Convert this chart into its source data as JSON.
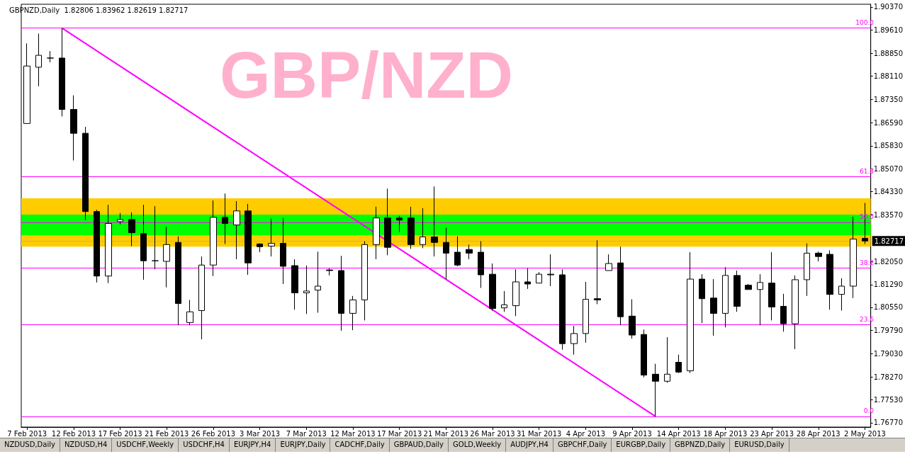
{
  "chart_data": {
    "type": "candlestick",
    "title": "GBP/NZD",
    "subtitle": "GBPNZD,Daily  1.82806 1.83962 1.82619 1.82717",
    "categories": [
      "7 Feb 2013",
      null,
      null,
      null,
      "12 Feb 2013",
      null,
      null,
      null,
      "17 Feb 2013",
      null,
      null,
      null,
      "21 Feb 2013",
      null,
      null,
      null,
      "26 Feb 2013",
      null,
      null,
      null,
      "3 Mar 2013",
      null,
      null,
      null,
      "7 Mar 2013",
      null,
      null,
      null,
      "12 Mar 2013",
      null,
      null,
      null,
      "17 Mar 2013",
      null,
      null,
      null,
      "21 Mar 2013",
      null,
      null,
      null,
      "26 Mar 2013",
      null,
      null,
      null,
      "31 Mar 2013",
      null,
      null,
      null,
      "4 Apr 2013",
      null,
      null,
      null,
      "9 Apr 2013",
      null,
      null,
      null,
      "14 Apr 2013",
      null,
      null,
      null,
      "18 Apr 2013",
      null,
      null,
      null,
      "23 Apr 2013",
      null,
      null,
      null,
      "28 Apr 2013",
      null,
      null,
      null,
      "2 May 2013"
    ],
    "ohlc": [
      [
        1.8656,
        1.8918,
        1.8656,
        1.8844
      ],
      [
        1.884,
        1.895,
        1.8778,
        1.8879
      ],
      [
        1.887,
        1.8893,
        1.8856,
        1.887
      ],
      [
        1.887,
        1.8968,
        1.8679,
        1.8702
      ],
      [
        1.8702,
        1.8748,
        1.8535,
        1.8624
      ],
      [
        1.8624,
        1.8645,
        1.834,
        1.8368
      ],
      [
        1.8368,
        1.8374,
        1.8136,
        1.8157
      ],
      [
        1.8157,
        1.839,
        1.8134,
        1.8329
      ],
      [
        1.8335,
        1.8363,
        1.8326,
        1.8342
      ],
      [
        1.8342,
        1.8365,
        1.8255,
        1.8299
      ],
      [
        1.8296,
        1.839,
        1.8145,
        1.8207
      ],
      [
        1.8207,
        1.8386,
        1.8179,
        1.8207
      ],
      [
        1.8205,
        1.8319,
        1.812,
        1.826
      ],
      [
        1.8267,
        1.8287,
        1.7996,
        1.8067
      ],
      [
        1.8005,
        1.8079,
        1.7996,
        1.804
      ],
      [
        1.8044,
        1.8221,
        1.795,
        1.8193
      ],
      [
        1.8193,
        1.8404,
        1.8157,
        1.8349
      ],
      [
        1.8349,
        1.8427,
        1.8262,
        1.8329
      ],
      [
        1.8324,
        1.8402,
        1.8212,
        1.837
      ],
      [
        1.837,
        1.8393,
        1.8161,
        1.82
      ],
      [
        1.8262,
        1.8264,
        1.8235,
        1.8253
      ],
      [
        1.8255,
        1.8345,
        1.8221,
        1.8264
      ],
      [
        1.8264,
        1.8347,
        1.8131,
        1.8189
      ],
      [
        1.8191,
        1.8212,
        1.8047,
        1.8102
      ],
      [
        1.8102,
        1.8191,
        1.8033,
        1.8108
      ],
      [
        1.8111,
        1.8237,
        1.8037,
        1.8124
      ],
      [
        1.8177,
        1.8182,
        1.8159,
        1.8175
      ],
      [
        1.8175,
        1.8223,
        1.7978,
        1.8035
      ],
      [
        1.8035,
        1.8092,
        1.798,
        1.8079
      ],
      [
        1.8079,
        1.8271,
        1.8012,
        1.826
      ],
      [
        1.826,
        1.8384,
        1.8212,
        1.8347
      ],
      [
        1.8347,
        1.8443,
        1.8225,
        1.8251
      ],
      [
        1.8347,
        1.8354,
        1.8301,
        1.834
      ],
      [
        1.8347,
        1.8384,
        1.8246,
        1.826
      ],
      [
        1.826,
        1.8379,
        1.8248,
        1.8285
      ],
      [
        1.8285,
        1.845,
        1.8221,
        1.8267
      ],
      [
        1.8267,
        1.8315,
        1.8147,
        1.8232
      ],
      [
        1.8235,
        1.8287,
        1.8189,
        1.8193
      ],
      [
        1.8244,
        1.826,
        1.8212,
        1.8232
      ],
      [
        1.8235,
        1.8271,
        1.8118,
        1.8161
      ],
      [
        1.8163,
        1.8198,
        1.8044,
        1.8051
      ],
      [
        1.8053,
        1.8108,
        1.804,
        1.8063
      ],
      [
        1.806,
        1.8179,
        1.8026,
        1.8138
      ],
      [
        1.8138,
        1.8182,
        1.8115,
        1.8131
      ],
      [
        1.8134,
        1.817,
        1.8134,
        1.8163
      ],
      [
        1.8163,
        1.8228,
        1.8124,
        1.8161
      ],
      [
        1.8161,
        1.8179,
        1.7916,
        1.7936
      ],
      [
        1.7936,
        1.7994,
        1.79,
        1.7969
      ],
      [
        1.7969,
        1.8138,
        1.7939,
        1.8081
      ],
      [
        1.8083,
        1.8274,
        1.8065,
        1.8079
      ],
      [
        1.8175,
        1.8228,
        1.8175,
        1.8198
      ],
      [
        1.82,
        1.8253,
        1.7996,
        1.8024
      ],
      [
        1.8026,
        1.8081,
        1.7952,
        1.7964
      ],
      [
        1.7966,
        1.7982,
        1.7826,
        1.7833
      ],
      [
        1.7836,
        1.787,
        1.7698,
        1.7813
      ],
      [
        1.7813,
        1.7957,
        1.7808,
        1.7836
      ],
      [
        1.7875,
        1.79,
        1.784,
        1.7843
      ],
      [
        1.7847,
        1.8235,
        1.784,
        1.8147
      ],
      [
        1.8147,
        1.8163,
        1.8003,
        1.8083
      ],
      [
        1.8085,
        1.8147,
        1.7962,
        1.8035
      ],
      [
        1.8035,
        1.8186,
        1.7989,
        1.8159
      ],
      [
        1.8159,
        1.8175,
        1.804,
        1.8058
      ],
      [
        1.8127,
        1.8131,
        1.8113,
        1.8113
      ],
      [
        1.8113,
        1.8163,
        1.7996,
        1.8136
      ],
      [
        1.8134,
        1.8235,
        1.8012,
        1.8056
      ],
      [
        1.8058,
        1.8099,
        1.7975,
        1.8001
      ],
      [
        1.8001,
        1.8159,
        1.7918,
        1.8145
      ],
      [
        1.8145,
        1.8264,
        1.8092,
        1.8232
      ],
      [
        1.8232,
        1.8237,
        1.8205,
        1.8221
      ],
      [
        1.8228,
        1.8241,
        1.8047,
        1.8097
      ],
      [
        1.8097,
        1.815,
        1.8044,
        1.8124
      ],
      [
        1.8124,
        1.8351,
        1.8085,
        1.8278
      ],
      [
        1.82806,
        1.83962,
        1.82619,
        1.82717
      ]
    ],
    "series": [
      {
        "type": "line",
        "color": "#ff00ff",
        "values": [
          null,
          null,
          null,
          1.8968,
          null,
          null,
          null,
          null,
          null,
          null,
          null,
          null,
          null,
          null,
          null,
          null,
          null,
          null,
          null,
          null,
          null,
          null,
          null,
          null,
          null,
          null,
          null,
          null,
          null,
          null,
          null,
          null,
          null,
          null,
          null,
          null,
          null,
          null,
          null,
          null,
          null,
          null,
          null,
          null,
          null,
          null,
          null,
          null,
          null,
          null,
          null,
          null,
          null,
          null,
          1.7698,
          null,
          null,
          null,
          null,
          null,
          null,
          null,
          null,
          null,
          null,
          null,
          null,
          null,
          null,
          null,
          null,
          null,
          null
        ]
      }
    ],
    "ylim": [
      1.7663,
      1.9046
    ],
    "yticks": [
      {
        "value": 1.7677,
        "label": "1.76770"
      },
      {
        "value": 1.7753,
        "label": "1.77530"
      },
      {
        "value": 1.7827,
        "label": "1.78270"
      },
      {
        "value": 1.7903,
        "label": "1.79030"
      },
      {
        "value": 1.7979,
        "label": "1.79790"
      },
      {
        "value": 1.8055,
        "label": "1.80550"
      },
      {
        "value": 1.8129,
        "label": "1.81290"
      },
      {
        "value": 1.8205,
        "label": "1.82050"
      },
      {
        "value": 1.8357,
        "label": "1.83570"
      },
      {
        "value": 1.8433,
        "label": "1.84330"
      },
      {
        "value": 1.8507,
        "label": "1.85070"
      },
      {
        "value": 1.8583,
        "label": "1.85830"
      },
      {
        "value": 1.8659,
        "label": "1.86590"
      },
      {
        "value": 1.8735,
        "label": "1.87350"
      },
      {
        "value": 1.8811,
        "label": "1.88110"
      },
      {
        "value": 1.8885,
        "label": "1.88850"
      },
      {
        "value": 1.8961,
        "label": "1.89610"
      },
      {
        "value": 1.9037,
        "label": "1.90370"
      }
    ],
    "ref_lines": [
      {
        "axis": "y",
        "value": 1.8968,
        "color": "#ff00ff"
      },
      {
        "axis": "y",
        "value": 1.8483,
        "color": "#ff00ff"
      },
      {
        "axis": "y",
        "value": 1.8333,
        "color": "#ff00ff"
      },
      {
        "axis": "y",
        "value": 1.8183,
        "color": "#ff00ff"
      },
      {
        "axis": "y",
        "value": 1.7998,
        "color": "#ff00ff"
      },
      {
        "axis": "y",
        "value": 1.7698,
        "color": "#ff00ff"
      },
      {
        "axis": "y",
        "value": 1.82717,
        "label": "1.82717",
        "color": "#a0a0a0",
        "line_style": "dotted"
      }
    ],
    "bands": [
      {
        "axis": "y",
        "from": 1.8253,
        "to": 1.8411,
        "color": "#ffcc00"
      },
      {
        "axis": "y",
        "from": 1.829,
        "to": 1.8358,
        "color": "#00ff00"
      }
    ],
    "grid": false,
    "annotations": [
      {
        "text": "100.0",
        "y": 1.8968
      },
      {
        "text": "61.8",
        "y": 1.8483
      },
      {
        "text": "50.0",
        "y": 1.8333
      },
      {
        "text": "38.2",
        "y": 1.8183
      },
      {
        "text": "23.6",
        "y": 1.7998
      },
      {
        "text": "0.0",
        "y": 1.7698
      },
      "NZDUSD,Daily",
      "NZDUSD,H4",
      "USDCHF,Weekly",
      "USDCHF,H4",
      "EURJPY,H4",
      "EURJPY,Daily",
      "CADCHF,Daily",
      "GBPAUD,Daily",
      "GOLD,Weekly",
      "AUDJPY,H4",
      "GBPCHF,Daily",
      "EURGBP,Daily",
      "GBPNZD,Daily",
      "EURUSD,Daily"
    ]
  }
}
